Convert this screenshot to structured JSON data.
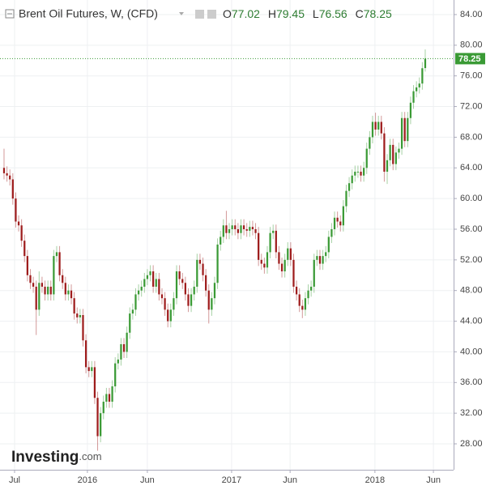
{
  "chart_data": {
    "type": "candlestick",
    "title": "Brent Oil Futures, W, (CFD)",
    "ohlc": [
      {
        "label": "O",
        "value": 77.02
      },
      {
        "label": "H",
        "value": 79.45
      },
      {
        "label": "L",
        "value": 76.56
      },
      {
        "label": "C",
        "value": 78.25
      }
    ],
    "last_price": {
      "value": 78.25,
      "label": "78.25"
    },
    "up_color": "#3a9a35",
    "down_color": "#9e1c1c",
    "brand": {
      "name": "Investing",
      "suffix": ".com"
    },
    "open": [
      64.0,
      63.3,
      63.0,
      62.5,
      60.0,
      57.0,
      56.5,
      54.5,
      52.5,
      50.0,
      49.0,
      48.5,
      45.5,
      49.0,
      48.5,
      47.5,
      48.5,
      47.5,
      52.5,
      53.0,
      50.0,
      49.0,
      47.5,
      48.0,
      47.0,
      45.0,
      44.5,
      44.8,
      41.5,
      38.0,
      37.5,
      38.0,
      34.0,
      29.0,
      32.0,
      33.5,
      34.5,
      33.5,
      35.5,
      38.5,
      39.0,
      41.0,
      40.0,
      42.5,
      45.0,
      45.5,
      47.5,
      48.0,
      48.5,
      49.5,
      50.0,
      50.5,
      48.5,
      49.5,
      47.5,
      47.0,
      45.5,
      44.0,
      45.5,
      47.0,
      50.5,
      49.5,
      49.0,
      47.5,
      46.0,
      47.5,
      48.5,
      52.0,
      51.5,
      50.0,
      48.0,
      45.5,
      47.0,
      49.0,
      54.0,
      55.0,
      56.5,
      55.5,
      56.0,
      56.5,
      56.0,
      55.5,
      56.5,
      56.0,
      55.8,
      56.3,
      56.0,
      55.5,
      52.0,
      51.5,
      51.0,
      53.0,
      55.5,
      55.8,
      53.0,
      51.5,
      50.5,
      52.0,
      53.5,
      52.0,
      48.5,
      47.5,
      46.0,
      45.5,
      47.0,
      48.0,
      48.5,
      52.0,
      52.5,
      51.5,
      52.5,
      53.0,
      55.0,
      56.0,
      57.5,
      57.0,
      56.5,
      59.0,
      61.0,
      62.0,
      63.0,
      63.5,
      63.5,
      63.0,
      64.0,
      66.5,
      68.0,
      70.0,
      69.0,
      70.0,
      68.5,
      63.5,
      65.0,
      67.0,
      64.5,
      66.0,
      66.5,
      70.5,
      67.5,
      70.5,
      72.5,
      74.0,
      74.5,
      75.0,
      77.02
    ],
    "high": [
      66.5,
      64.2,
      63.8,
      63.3,
      60.8,
      57.8,
      57.3,
      55.3,
      53.3,
      50.8,
      49.8,
      49.3,
      50.5,
      49.8,
      49.3,
      49.3,
      49.3,
      53.3,
      53.8,
      53.8,
      50.8,
      49.8,
      48.8,
      48.8,
      47.8,
      45.8,
      45.6,
      45.6,
      42.3,
      38.8,
      38.8,
      38.8,
      34.8,
      32.8,
      34.3,
      35.3,
      35.3,
      36.3,
      39.3,
      39.8,
      41.8,
      41.8,
      43.3,
      45.8,
      46.3,
      48.3,
      48.8,
      49.3,
      50.3,
      50.8,
      51.3,
      51.3,
      50.3,
      50.3,
      48.3,
      47.8,
      46.3,
      46.3,
      47.8,
      51.3,
      51.3,
      50.3,
      49.8,
      48.3,
      48.3,
      49.3,
      52.8,
      52.8,
      52.3,
      50.8,
      48.8,
      47.8,
      49.8,
      54.8,
      55.8,
      57.3,
      58.4,
      56.8,
      57.3,
      57.3,
      56.8,
      57.3,
      57.3,
      56.8,
      57.1,
      57.1,
      56.8,
      56.3,
      52.8,
      52.3,
      53.8,
      56.3,
      56.6,
      56.6,
      53.8,
      52.3,
      52.8,
      54.3,
      54.3,
      52.8,
      49.3,
      48.3,
      46.8,
      47.8,
      48.8,
      49.3,
      52.8,
      53.3,
      53.3,
      53.3,
      53.8,
      55.8,
      56.8,
      58.3,
      58.3,
      57.8,
      59.8,
      61.8,
      62.8,
      63.8,
      64.3,
      64.3,
      64.3,
      64.8,
      67.3,
      68.8,
      70.8,
      71.2,
      70.8,
      70.8,
      69.3,
      65.8,
      67.8,
      67.8,
      66.8,
      67.3,
      71.3,
      71.3,
      71.3,
      73.3,
      74.8,
      75.3,
      75.8,
      77.8,
      79.45
    ],
    "low": [
      62.5,
      62.2,
      61.7,
      59.2,
      56.2,
      55.7,
      53.7,
      51.7,
      49.2,
      48.2,
      47.7,
      42.2,
      44.7,
      47.7,
      46.7,
      46.7,
      46.7,
      46.7,
      51.7,
      49.2,
      48.2,
      46.7,
      46.7,
      46.2,
      44.2,
      43.7,
      43.7,
      40.7,
      37.2,
      36.7,
      36.7,
      33.2,
      27.1,
      28.2,
      31.2,
      32.7,
      32.7,
      32.7,
      34.7,
      37.7,
      38.2,
      39.2,
      39.2,
      41.7,
      44.2,
      44.7,
      46.7,
      47.2,
      47.7,
      48.7,
      49.2,
      47.7,
      47.7,
      46.7,
      46.2,
      44.7,
      43.2,
      43.2,
      44.7,
      46.2,
      48.7,
      48.2,
      46.7,
      45.2,
      45.2,
      46.7,
      47.7,
      50.7,
      49.2,
      47.2,
      43.7,
      44.7,
      46.2,
      48.2,
      53.2,
      54.2,
      54.7,
      54.7,
      55.2,
      55.2,
      54.7,
      54.7,
      55.2,
      55.0,
      55.0,
      55.2,
      54.7,
      51.2,
      50.7,
      50.2,
      50.2,
      52.2,
      54.7,
      52.2,
      50.7,
      49.7,
      49.7,
      51.2,
      51.2,
      47.7,
      46.7,
      45.2,
      44.4,
      44.7,
      46.2,
      47.2,
      47.7,
      51.2,
      50.7,
      50.7,
      51.7,
      52.2,
      54.2,
      55.2,
      56.2,
      55.7,
      55.7,
      58.2,
      60.2,
      61.2,
      62.2,
      62.7,
      62.2,
      62.2,
      63.2,
      65.7,
      67.2,
      68.2,
      68.2,
      67.7,
      62.2,
      61.9,
      64.2,
      63.7,
      63.7,
      65.2,
      65.7,
      66.7,
      66.7,
      69.7,
      71.7,
      73.2,
      73.7,
      74.2,
      76.56
    ],
    "close": [
      63.3,
      63.0,
      62.5,
      60.0,
      57.0,
      56.5,
      54.5,
      52.5,
      50.0,
      49.0,
      48.5,
      45.5,
      49.0,
      48.5,
      47.5,
      48.5,
      47.5,
      52.5,
      53.0,
      50.0,
      49.0,
      47.5,
      48.0,
      47.0,
      45.0,
      44.5,
      44.8,
      41.5,
      38.0,
      37.5,
      38.0,
      34.0,
      29.0,
      32.0,
      33.5,
      34.5,
      33.5,
      35.5,
      38.5,
      39.0,
      41.0,
      40.0,
      42.5,
      45.0,
      45.5,
      47.5,
      48.0,
      48.5,
      49.5,
      50.0,
      50.5,
      48.5,
      49.5,
      47.5,
      47.0,
      45.5,
      44.0,
      45.5,
      47.0,
      50.5,
      49.5,
      49.0,
      47.5,
      46.0,
      47.5,
      48.5,
      52.0,
      51.5,
      50.0,
      48.0,
      45.5,
      47.0,
      49.0,
      54.0,
      55.0,
      56.5,
      55.5,
      56.0,
      56.5,
      56.0,
      55.5,
      56.5,
      56.0,
      55.8,
      56.3,
      56.0,
      55.5,
      52.0,
      51.5,
      51.0,
      53.0,
      55.5,
      55.8,
      53.0,
      51.5,
      50.5,
      52.0,
      53.5,
      52.0,
      48.5,
      47.5,
      46.0,
      45.5,
      47.0,
      48.0,
      48.5,
      52.0,
      52.5,
      51.5,
      52.5,
      53.0,
      55.0,
      56.0,
      57.5,
      57.0,
      56.5,
      59.0,
      61.0,
      62.0,
      63.0,
      63.5,
      63.5,
      63.0,
      64.0,
      66.5,
      68.0,
      70.0,
      69.0,
      70.0,
      68.5,
      63.5,
      65.0,
      67.0,
      64.5,
      66.0,
      66.5,
      70.5,
      67.5,
      70.5,
      72.5,
      74.0,
      74.5,
      75.0,
      77.0,
      78.25
    ],
    "xlim": [
      -1.38,
      153.7
    ],
    "xticks": [
      {
        "value": 3.6,
        "label": "Jul"
      },
      {
        "value": 28.5,
        "label": "2016"
      },
      {
        "value": 49.0,
        "label": "Jun"
      },
      {
        "value": 77.8,
        "label": "2017"
      },
      {
        "value": 97.8,
        "label": "Jun"
      },
      {
        "value": 126.8,
        "label": "2018"
      },
      {
        "value": 146.8,
        "label": "Jun"
      }
    ],
    "ylim": [
      24.62,
      85.9
    ],
    "yticks": [
      {
        "value": 28,
        "label": "28.00"
      },
      {
        "value": 32,
        "label": "32.00"
      },
      {
        "value": 36,
        "label": "36.00"
      },
      {
        "value": 40,
        "label": "40.00"
      },
      {
        "value": 44,
        "label": "44.00"
      },
      {
        "value": 48,
        "label": "48.00"
      },
      {
        "value": 52,
        "label": "52.00"
      },
      {
        "value": 56,
        "label": "56.00"
      },
      {
        "value": 60,
        "label": "60.00"
      },
      {
        "value": 64,
        "label": "64.00"
      },
      {
        "value": 68,
        "label": "68.00"
      },
      {
        "value": 72,
        "label": "72.00"
      },
      {
        "value": 76,
        "label": "76.00"
      },
      {
        "value": 80,
        "label": "80.00"
      },
      {
        "value": 84,
        "label": "84.00"
      }
    ],
    "grid": true
  }
}
